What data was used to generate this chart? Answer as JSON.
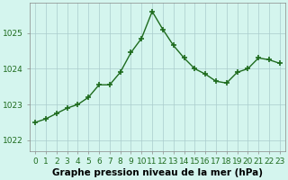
{
  "x": [
    0,
    1,
    2,
    3,
    4,
    5,
    6,
    7,
    8,
    9,
    10,
    11,
    12,
    13,
    14,
    15,
    16,
    17,
    18,
    19,
    20,
    21,
    22,
    23
  ],
  "y": [
    1022.5,
    1022.6,
    1022.75,
    1022.9,
    1023.0,
    1023.2,
    1023.55,
    1023.55,
    1023.9,
    1024.45,
    1024.85,
    1025.6,
    1025.1,
    1024.65,
    1024.3,
    1024.0,
    1023.85,
    1023.65,
    1023.6,
    1023.9,
    1024.0,
    1024.3,
    1024.25,
    1024.15
  ],
  "line_color": "#1e6b1e",
  "marker": "+",
  "marker_size": 4,
  "line_width": 1.0,
  "bg_color": "#d4f5ee",
  "grid_color": "#aacccc",
  "xlabel": "Graphe pression niveau de la mer (hPa)",
  "xlabel_fontsize": 7.5,
  "xlabel_bold": true,
  "ylabel_ticks": [
    1022,
    1023,
    1024,
    1025
  ],
  "xlim": [
    -0.5,
    23.5
  ],
  "ylim": [
    1021.7,
    1025.85
  ],
  "tick_fontsize": 6.5,
  "xtick_labels": [
    "0",
    "1",
    "2",
    "3",
    "4",
    "5",
    "6",
    "7",
    "8",
    "9",
    "10",
    "11",
    "12",
    "13",
    "14",
    "15",
    "16",
    "17",
    "18",
    "19",
    "20",
    "21",
    "22",
    "23"
  ]
}
